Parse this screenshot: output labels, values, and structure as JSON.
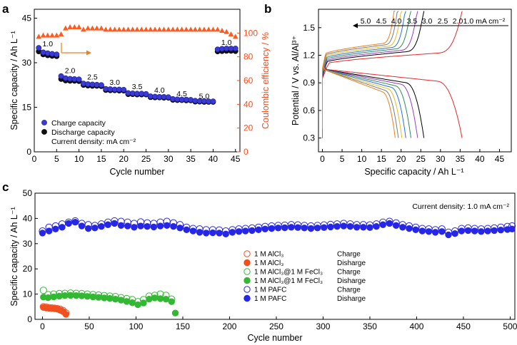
{
  "panels": {
    "a": "a",
    "b": "b",
    "c": "c"
  },
  "chart_data": [
    {
      "id": "a",
      "type": "scatter",
      "xlabel": "Cycle number",
      "ylabel": "Specific capacity / Ah L⁻¹",
      "y2label": "Coulombic efficiency / %",
      "xlim": [
        0,
        46
      ],
      "ylim": [
        0,
        48
      ],
      "y2lim": [
        0,
        120
      ],
      "xticks": [
        0,
        5,
        10,
        15,
        20,
        25,
        30,
        35,
        40,
        45
      ],
      "yticks": [
        0,
        15,
        30,
        45
      ],
      "y2ticks": [
        0,
        20,
        40,
        60,
        80,
        100
      ],
      "rate_labels": [
        {
          "text": "1.0",
          "x": 3,
          "y": 35.5
        },
        {
          "text": "2.0",
          "x": 8,
          "y": 26.5
        },
        {
          "text": "2.5",
          "x": 13,
          "y": 24.4
        },
        {
          "text": "3.0",
          "x": 18,
          "y": 22.6
        },
        {
          "text": "3.5",
          "x": 23,
          "y": 21.1
        },
        {
          "text": "4.0",
          "x": 28,
          "y": 19.9
        },
        {
          "text": "4.5",
          "x": 33,
          "y": 18.7
        },
        {
          "text": "5.0",
          "x": 38,
          "y": 17.9
        },
        {
          "text": "1.0",
          "x": 43,
          "y": 36.0
        }
      ],
      "legend": {
        "charge": "Charge capacity",
        "discharge": "Discharge capacity",
        "note": "Current density: mA cm⁻²"
      },
      "series": [
        {
          "name": "Charge capacity",
          "color": "#3a3ad8",
          "x": [
            1,
            2,
            3,
            4,
            5,
            6,
            7,
            8,
            9,
            10,
            11,
            12,
            13,
            14,
            15,
            16,
            17,
            18,
            19,
            20,
            21,
            22,
            23,
            24,
            25,
            26,
            27,
            28,
            29,
            30,
            31,
            32,
            33,
            34,
            35,
            36,
            37,
            38,
            39,
            40,
            41,
            42,
            43,
            44,
            45
          ],
          "values": [
            35,
            33.5,
            33.2,
            33,
            32.8,
            25.5,
            24.8,
            24.6,
            24.5,
            24.4,
            23,
            22.8,
            22.7,
            22.6,
            22.5,
            21.2,
            21.1,
            21,
            21,
            20.9,
            19.8,
            19.7,
            19.6,
            19.6,
            19.5,
            18.7,
            18.6,
            18.5,
            18.5,
            18.4,
            17.8,
            17.7,
            17.6,
            17.6,
            17.5,
            17.2,
            17.1,
            17.1,
            17,
            17,
            34.5,
            34.7,
            34.8,
            34.8,
            34.8
          ]
        },
        {
          "name": "Discharge capacity",
          "color": "#111111",
          "x": [
            1,
            2,
            3,
            4,
            5,
            6,
            7,
            8,
            9,
            10,
            11,
            12,
            13,
            14,
            15,
            16,
            17,
            18,
            19,
            20,
            21,
            22,
            23,
            24,
            25,
            26,
            27,
            28,
            29,
            30,
            31,
            32,
            33,
            34,
            35,
            36,
            37,
            38,
            39,
            40,
            41,
            42,
            43,
            44,
            45
          ],
          "values": [
            33.8,
            32.8,
            32.5,
            32.3,
            32.2,
            24.5,
            24,
            23.9,
            23.9,
            23.8,
            22.5,
            22.3,
            22.2,
            22.2,
            22.1,
            20.8,
            20.7,
            20.7,
            20.6,
            20.6,
            19.4,
            19.4,
            19.3,
            19.3,
            19.3,
            18.4,
            18.3,
            18.3,
            18.2,
            18.2,
            17.5,
            17.4,
            17.4,
            17.3,
            17.3,
            16.9,
            16.9,
            16.8,
            16.8,
            16.8,
            33.8,
            33.9,
            34,
            34,
            33.9
          ]
        },
        {
          "name": "Coulombic efficiency",
          "color": "#ff5a1f",
          "axis": "y2",
          "x": [
            1,
            2,
            3,
            4,
            5,
            6,
            7,
            8,
            9,
            10,
            11,
            12,
            13,
            14,
            15,
            16,
            17,
            18,
            19,
            20,
            21,
            22,
            23,
            24,
            25,
            26,
            27,
            28,
            29,
            30,
            31,
            32,
            33,
            34,
            35,
            36,
            37,
            38,
            39,
            40,
            41,
            42,
            43,
            44,
            45
          ],
          "values": [
            97,
            98,
            98,
            98,
            98,
            99,
            104,
            105,
            105,
            105,
            103,
            104,
            104,
            104,
            104,
            103,
            103,
            103,
            103,
            103,
            103,
            103,
            103,
            103,
            103,
            103,
            103,
            103,
            103,
            103,
            103,
            103,
            103,
            103,
            103,
            103,
            103,
            103,
            103,
            103,
            103,
            102,
            101,
            99,
            97
          ]
        }
      ]
    },
    {
      "id": "b",
      "type": "line",
      "xlabel": "Specific capacity / Ah L⁻¹",
      "ylabel": "Potential / V vs. Al/Al³⁺",
      "xlim": [
        -1,
        48
      ],
      "ylim": [
        0.15,
        1.7
      ],
      "xticks": [
        0,
        5,
        10,
        15,
        20,
        25,
        30,
        35,
        40,
        45
      ],
      "yticks": [
        0.3,
        0.6,
        0.9,
        1.2,
        1.5
      ],
      "yticklabels": [
        "0.3",
        "0.6",
        "0.9",
        "1.2",
        "1.5"
      ],
      "rate_header": [
        "5.0",
        "4.5",
        "4.0",
        "3.5",
        "3.0",
        "2.5",
        "2.0",
        "1.0 mA cm⁻²"
      ],
      "series": [
        {
          "name": "1.0",
          "color": "#e8282c",
          "capacity": 35.5
        },
        {
          "name": "2.0",
          "color": "#000000",
          "capacity": 25.8
        },
        {
          "name": "2.5",
          "color": "#9a3cc2",
          "capacity": 24.2
        },
        {
          "name": "3.0",
          "color": "#2e8b57",
          "capacity": 22.5
        },
        {
          "name": "3.5",
          "color": "#2d6fdc",
          "capacity": 21.2
        },
        {
          "name": "4.0",
          "color": "#e0c020",
          "capacity": 20.2
        },
        {
          "name": "4.5",
          "color": "#7a7a7a",
          "capacity": 19.3
        },
        {
          "name": "5.0",
          "color": "#f07f20",
          "capacity": 18.5
        }
      ]
    },
    {
      "id": "c",
      "type": "scatter",
      "xlabel": "Cycle number",
      "ylabel": "Specific capacity / Ah L⁻¹",
      "xlim": [
        -8,
        505
      ],
      "ylim": [
        0,
        50
      ],
      "xticks": [
        0,
        50,
        100,
        150,
        200,
        250,
        300,
        350,
        400,
        450,
        500
      ],
      "yticks": [
        0,
        10,
        20,
        30,
        40,
        50
      ],
      "note": "Current density: 1.0 mA cm⁻²",
      "legend": [
        {
          "label": "1 M AlCl₃",
          "kind": "Charge",
          "color": "#f05020",
          "filled": false
        },
        {
          "label": "1 M AlCl₃",
          "kind": "Disharge",
          "color": "#f05020",
          "filled": true
        },
        {
          "label": "1 M AlCl₃@1 M FeCl₃",
          "kind": "Charge",
          "color": "#33b833",
          "filled": false
        },
        {
          "label": "1 M AlCl₃@1 M FeCl₃",
          "kind": "Disharge",
          "color": "#33b833",
          "filled": true
        },
        {
          "label": "1 M PAFC",
          "kind": "Charge",
          "color": "#2626e6",
          "filled": false
        },
        {
          "label": "1 M PAFC",
          "kind": "Disharge",
          "color": "#2626e6",
          "filled": true
        }
      ],
      "series": [
        {
          "name": "1 M AlCl₃ Charge",
          "color": "#f05020",
          "filled": false,
          "x": [
            1,
            4,
            7,
            10,
            13,
            16,
            19,
            22,
            25
          ],
          "values": [
            5,
            4.8,
            4.6,
            4.5,
            4.4,
            4.2,
            4,
            3.5,
            2.5
          ]
        },
        {
          "name": "1 M AlCl₃ Disharge",
          "color": "#f05020",
          "filled": true,
          "x": [
            1,
            4,
            7,
            10,
            13,
            16,
            19,
            22,
            25
          ],
          "values": [
            4.7,
            4.5,
            4.4,
            4.3,
            4.2,
            4,
            3.6,
            3.1,
            2
          ]
        },
        {
          "name": "1 M AlCl₃@1 M FeCl₃ Charge",
          "color": "#33b833",
          "filled": false,
          "x": [
            1,
            6,
            12,
            18,
            24,
            30,
            36,
            42,
            48,
            54,
            60,
            66,
            72,
            78,
            84,
            90,
            96,
            102,
            108,
            114,
            120,
            126,
            132,
            138
          ],
          "values": [
            11.5,
            9.8,
            10,
            10.2,
            10.3,
            10.4,
            10.3,
            10.2,
            10,
            9.8,
            9.6,
            9.4,
            9.2,
            9,
            8.6,
            8.2,
            7.8,
            7,
            7.8,
            9.2,
            9.5,
            10,
            9.5,
            8
          ]
        },
        {
          "name": "1 M AlCl₃@1 M FeCl₃ Disharge",
          "color": "#33b833",
          "filled": true,
          "x": [
            1,
            6,
            12,
            18,
            24,
            30,
            36,
            42,
            48,
            54,
            60,
            66,
            72,
            78,
            84,
            90,
            96,
            102,
            108,
            114,
            120,
            126,
            132,
            138,
            142
          ],
          "values": [
            8.8,
            8.6,
            8.9,
            9.2,
            9.4,
            9.5,
            9.4,
            9.3,
            9.1,
            8.9,
            8.7,
            8.5,
            8.3,
            8,
            7.6,
            7.1,
            6.6,
            5.8,
            6.5,
            8,
            8.5,
            8.2,
            8,
            7,
            2.5
          ]
        },
        {
          "name": "1 M PAFC Charge",
          "color": "#2626e6",
          "filled": false,
          "x": [
            0,
            7,
            14,
            21,
            28,
            35,
            42,
            49,
            56,
            63,
            70,
            77,
            84,
            91,
            98,
            105,
            112,
            119,
            126,
            133,
            140,
            147,
            154,
            161,
            168,
            175,
            182,
            189,
            196,
            203,
            210,
            217,
            224,
            231,
            238,
            245,
            252,
            259,
            266,
            273,
            280,
            287,
            294,
            301,
            308,
            315,
            322,
            329,
            336,
            343,
            350,
            357,
            364,
            371,
            378,
            385,
            392,
            399,
            406,
            413,
            420,
            427,
            434,
            441,
            448,
            455,
            462,
            469,
            476,
            483,
            490,
            497,
            502
          ],
          "values": [
            35,
            36.5,
            37,
            37.8,
            38.5,
            39,
            38,
            37.5,
            37.2,
            37.8,
            38.5,
            39,
            38.8,
            38.5,
            38,
            38.6,
            38.2,
            38,
            38.5,
            38.8,
            38.2,
            37.5,
            36.5,
            36,
            35.8,
            35.5,
            35.5,
            35.4,
            35,
            35.5,
            35.8,
            36,
            36.2,
            36.5,
            36.8,
            37,
            37.2,
            37.3,
            37.5,
            37.4,
            37.2,
            37,
            37.2,
            37.4,
            37.6,
            37.8,
            38,
            37.8,
            37.5,
            37.5,
            37.4,
            37.8,
            38.5,
            38.8,
            38.2,
            37.5,
            37,
            36.5,
            36,
            35.8,
            35.5,
            35.8,
            34.5,
            35,
            36,
            36.2,
            36,
            35.8,
            36,
            36.2,
            36.5,
            36.8,
            37
          ]
        },
        {
          "name": "1 M PAFC Disharge",
          "color": "#2626e6",
          "filled": true,
          "x": [
            0,
            7,
            14,
            21,
            28,
            35,
            42,
            49,
            56,
            63,
            70,
            77,
            84,
            91,
            98,
            105,
            112,
            119,
            126,
            133,
            140,
            147,
            154,
            161,
            168,
            175,
            182,
            189,
            196,
            203,
            210,
            217,
            224,
            231,
            238,
            245,
            252,
            259,
            266,
            273,
            280,
            287,
            294,
            301,
            308,
            315,
            322,
            329,
            336,
            343,
            350,
            357,
            364,
            371,
            378,
            385,
            392,
            399,
            406,
            413,
            420,
            427,
            434,
            441,
            448,
            455,
            462,
            469,
            476,
            483,
            490,
            497,
            502
          ],
          "values": [
            34.2,
            35,
            35.8,
            36.5,
            38,
            38.5,
            37,
            36,
            36.2,
            36.8,
            37.5,
            38,
            37.2,
            37,
            36.5,
            37,
            36.8,
            36.6,
            37,
            37.2,
            36.8,
            36.2,
            35.5,
            35,
            34.5,
            34.2,
            34.3,
            34.2,
            33.8,
            34.5,
            34.8,
            35,
            35.2,
            35.5,
            35.8,
            36,
            36.2,
            36.3,
            36.5,
            36.4,
            36.2,
            36,
            36.2,
            36.4,
            36.6,
            36.8,
            37,
            36.8,
            36.5,
            36.5,
            36.4,
            36.8,
            37.5,
            38,
            37.2,
            36.5,
            36,
            35.5,
            35,
            34.8,
            34.5,
            34.8,
            33.5,
            34,
            35,
            35.2,
            35,
            34.8,
            35,
            35.2,
            35.4,
            35.6,
            35.8
          ]
        }
      ]
    }
  ]
}
